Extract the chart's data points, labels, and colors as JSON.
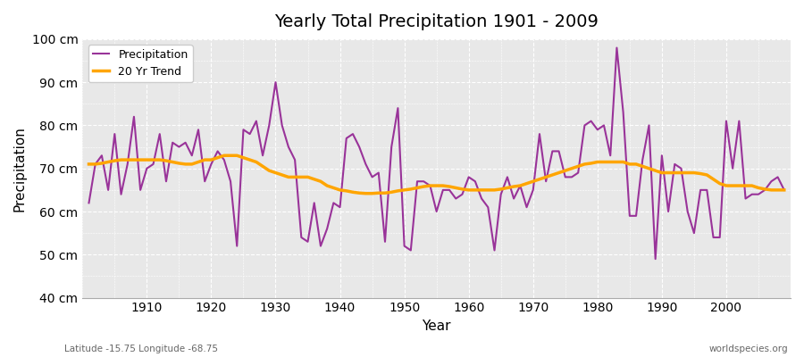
{
  "title": "Yearly Total Precipitation 1901 - 2009",
  "xlabel": "Year",
  "ylabel": "Precipitation",
  "bottom_left_label": "Latitude -15.75 Longitude -68.75",
  "bottom_right_label": "worldspecies.org",
  "ylim": [
    40,
    100
  ],
  "yticks": [
    40,
    50,
    60,
    70,
    80,
    90,
    100
  ],
  "xlim": [
    1901,
    2009
  ],
  "precip_color": "#993399",
  "trend_color": "#FFA500",
  "background_color": "#E8E8E8",
  "grid_color": "#FFFFFF",
  "precip_linewidth": 1.5,
  "trend_linewidth": 2.5,
  "years": [
    1901,
    1902,
    1903,
    1904,
    1905,
    1906,
    1907,
    1908,
    1909,
    1910,
    1911,
    1912,
    1913,
    1914,
    1915,
    1916,
    1917,
    1918,
    1919,
    1920,
    1921,
    1922,
    1923,
    1924,
    1925,
    1926,
    1927,
    1928,
    1929,
    1930,
    1931,
    1932,
    1933,
    1934,
    1935,
    1936,
    1937,
    1938,
    1939,
    1940,
    1941,
    1942,
    1943,
    1944,
    1945,
    1946,
    1947,
    1948,
    1949,
    1950,
    1951,
    1952,
    1953,
    1954,
    1955,
    1956,
    1957,
    1958,
    1959,
    1960,
    1961,
    1962,
    1963,
    1964,
    1965,
    1966,
    1967,
    1968,
    1969,
    1970,
    1971,
    1972,
    1973,
    1974,
    1975,
    1976,
    1977,
    1978,
    1979,
    1980,
    1981,
    1982,
    1983,
    1984,
    1985,
    1986,
    1987,
    1988,
    1989,
    1990,
    1991,
    1992,
    1993,
    1994,
    1995,
    1996,
    1997,
    1998,
    1999,
    2000,
    2001,
    2002,
    2003,
    2004,
    2005,
    2006,
    2007,
    2008,
    2009
  ],
  "precip": [
    62,
    71,
    73,
    65,
    78,
    64,
    71,
    82,
    65,
    70,
    71,
    78,
    67,
    76,
    75,
    76,
    73,
    79,
    67,
    71,
    74,
    72,
    67,
    52,
    79,
    78,
    81,
    73,
    80,
    90,
    80,
    75,
    72,
    54,
    53,
    62,
    52,
    56,
    62,
    61,
    77,
    78,
    75,
    71,
    68,
    69,
    53,
    75,
    84,
    52,
    51,
    67,
    67,
    66,
    60,
    65,
    65,
    63,
    64,
    68,
    67,
    63,
    61,
    51,
    64,
    68,
    63,
    66,
    61,
    65,
    78,
    67,
    74,
    74,
    68,
    68,
    69,
    80,
    81,
    79,
    80,
    73,
    98,
    83,
    59,
    59,
    72,
    80,
    49,
    73,
    60,
    71,
    70,
    60,
    55,
    65,
    65,
    54,
    54,
    81,
    70,
    81,
    63,
    64,
    64,
    65,
    67,
    68,
    65
  ],
  "trend": [
    71.0,
    71.0,
    71.2,
    71.5,
    71.8,
    72.0,
    72.0,
    72.0,
    72.0,
    72.0,
    72.0,
    72.0,
    71.8,
    71.5,
    71.2,
    71.0,
    71.0,
    71.5,
    72.0,
    72.0,
    72.5,
    73.0,
    73.0,
    73.0,
    72.5,
    72.0,
    71.5,
    70.5,
    69.5,
    69.0,
    68.5,
    68.0,
    68.0,
    68.0,
    68.0,
    67.5,
    67.0,
    66.0,
    65.5,
    65.0,
    64.8,
    64.5,
    64.3,
    64.2,
    64.2,
    64.3,
    64.3,
    64.5,
    64.8,
    65.0,
    65.2,
    65.5,
    65.8,
    66.0,
    66.0,
    66.0,
    65.8,
    65.5,
    65.2,
    65.0,
    65.0,
    65.0,
    65.0,
    65.0,
    65.2,
    65.5,
    65.8,
    66.0,
    66.5,
    67.0,
    67.5,
    68.0,
    68.5,
    69.0,
    69.5,
    70.0,
    70.5,
    71.0,
    71.2,
    71.5,
    71.5,
    71.5,
    71.5,
    71.5,
    71.0,
    71.0,
    70.5,
    70.0,
    69.5,
    69.0,
    69.0,
    69.0,
    69.0,
    69.0,
    69.0,
    68.8,
    68.5,
    67.5,
    66.5,
    66.0,
    66.0,
    66.0,
    66.0,
    66.0,
    65.5,
    65.2,
    65.0,
    65.0,
    65.0
  ],
  "xticks": [
    1910,
    1920,
    1930,
    1940,
    1950,
    1960,
    1970,
    1980,
    1990,
    2000
  ]
}
